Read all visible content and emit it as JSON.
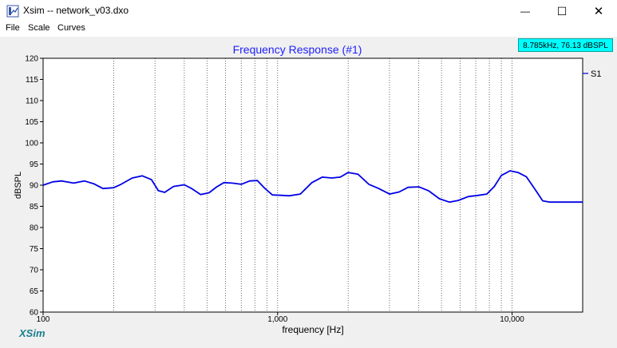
{
  "window": {
    "title": "Xsim -- network_v03.dxo",
    "minimize_symbol": "—",
    "maximize_symbol": "☐",
    "close_symbol": "✕"
  },
  "menu": {
    "items": [
      "File",
      "Scale",
      "Curves"
    ]
  },
  "readout": "8.785kHz, 76.13 dBSPL",
  "brand": "XSim",
  "colors": {
    "curve": "#0000e6",
    "title": "#2020ff",
    "readout_bg": "#00ffff",
    "brand": "#1a7f8f"
  },
  "chart_data": {
    "type": "line",
    "title": "Frequency Response (#1)",
    "xlabel": "frequency [Hz]",
    "ylabel": "dBSPL",
    "x_scale": "log",
    "xlim": [
      100,
      20000
    ],
    "ylim": [
      60,
      120
    ],
    "x_ticks": [
      100,
      1000,
      10000
    ],
    "x_tick_labels": [
      "100",
      "1,000",
      "10,000"
    ],
    "y_ticks": [
      60,
      65,
      70,
      75,
      80,
      85,
      90,
      95,
      100,
      105,
      110,
      115,
      120
    ],
    "grid": true,
    "legend": "right",
    "series": [
      {
        "name": "S1",
        "x": [
          100,
          110,
          120,
          135,
          150,
          165,
          180,
          200,
          215,
          240,
          265,
          290,
          310,
          330,
          360,
          400,
          430,
          470,
          510,
          550,
          590,
          640,
          700,
          760,
          820,
          880,
          950,
          1030,
          1120,
          1250,
          1400,
          1550,
          1700,
          1850,
          2000,
          2200,
          2450,
          2700,
          3000,
          3300,
          3600,
          4000,
          4400,
          4900,
          5400,
          5900,
          6500,
          7200,
          7800,
          8400,
          9000,
          9800,
          10600,
          11500,
          12500,
          13500,
          14500,
          15500,
          16500,
          17500,
          19000,
          20000
        ],
        "y": [
          90.0,
          90.8,
          91.0,
          90.5,
          91.0,
          90.3,
          89.2,
          89.4,
          90.2,
          91.7,
          92.2,
          91.3,
          88.7,
          88.3,
          89.7,
          90.1,
          89.2,
          87.8,
          88.2,
          89.6,
          90.6,
          90.5,
          90.2,
          91.0,
          91.1,
          89.3,
          87.7,
          87.6,
          87.5,
          87.9,
          90.6,
          91.9,
          91.7,
          91.9,
          93.0,
          92.6,
          90.2,
          89.2,
          87.9,
          88.4,
          89.5,
          89.6,
          88.7,
          86.8,
          86.0,
          86.4,
          87.3,
          87.6,
          87.9,
          89.7,
          92.3,
          93.4,
          93.0,
          92.0,
          89.1,
          86.3,
          86.0,
          86.0,
          86.0,
          86.0,
          86.0,
          86.0
        ]
      }
    ]
  }
}
